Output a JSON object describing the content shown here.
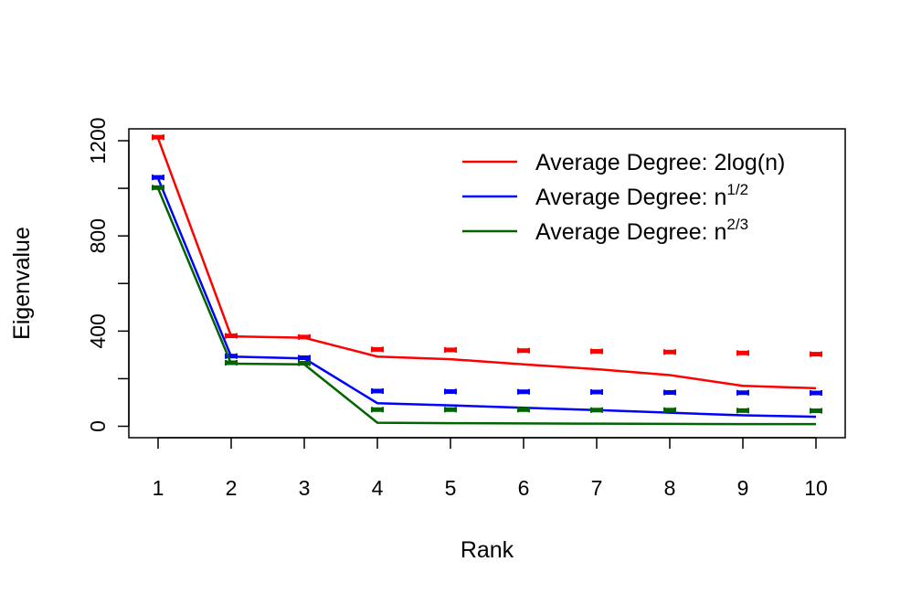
{
  "chart_data": {
    "type": "line",
    "title": "",
    "xlabel": "Rank",
    "ylabel": "Eigenvalue",
    "x": [
      1,
      2,
      3,
      4,
      5,
      6,
      7,
      8,
      9,
      10
    ],
    "xticks": [
      "1",
      "2",
      "3",
      "4",
      "5",
      "6",
      "7",
      "8",
      "9",
      "10"
    ],
    "yticks": [
      0,
      400,
      800,
      1200
    ],
    "xlim": [
      0.6,
      10.4
    ],
    "ylim": [
      -48,
      1250
    ],
    "grid": false,
    "legend_position": "top-right",
    "series": [
      {
        "name": "Average Degree:  2log(n)",
        "legend_text": "Average Degree:  2log(n)",
        "color": "#ff0000",
        "line_values": [
          1210,
          378,
          372,
          293,
          282,
          260,
          240,
          215,
          170,
          160
        ],
        "marker_values": [
          1215,
          380,
          375,
          323,
          321,
          318,
          315,
          312,
          308,
          303
        ]
      },
      {
        "name": "Average Degree:  n^1/2",
        "legend_text": "Average Degree:  n",
        "legend_sup": "1/2",
        "color": "#0000ff",
        "line_values": [
          1042,
          293,
          285,
          97,
          88,
          78,
          68,
          57,
          46,
          40
        ],
        "marker_values": [
          1046,
          295,
          288,
          148,
          146,
          145,
          144,
          142,
          141,
          140
        ]
      },
      {
        "name": "Average Degree:  n^2/3",
        "legend_text": "Average Degree:  n",
        "legend_sup": "2/3",
        "color": "#006400",
        "line_values": [
          1000,
          263,
          260,
          15,
          13,
          12,
          11,
          10,
          9,
          9
        ],
        "marker_values": [
          1003,
          267,
          265,
          70,
          70,
          70,
          68,
          68,
          66,
          65
        ]
      }
    ]
  }
}
